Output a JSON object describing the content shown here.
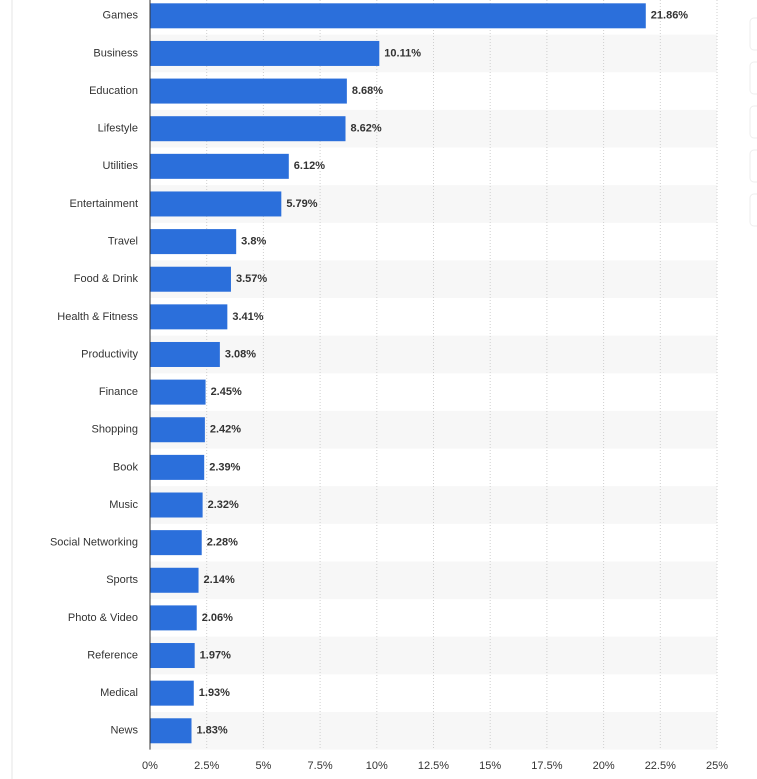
{
  "chart_data": {
    "type": "bar",
    "orientation": "horizontal",
    "color": "#2b6fdb",
    "grid": true,
    "categories": [
      "Games",
      "Business",
      "Education",
      "Lifestyle",
      "Utilities",
      "Entertainment",
      "Travel",
      "Food & Drink",
      "Health & Fitness",
      "Productivity",
      "Finance",
      "Shopping",
      "Book",
      "Music",
      "Social Networking",
      "Sports",
      "Photo & Video",
      "Reference",
      "Medical",
      "News"
    ],
    "values": [
      21.86,
      10.11,
      8.68,
      8.62,
      6.12,
      5.79,
      3.8,
      3.57,
      3.41,
      3.08,
      2.45,
      2.42,
      2.39,
      2.32,
      2.28,
      2.14,
      2.06,
      1.97,
      1.93,
      1.83
    ],
    "value_labels": [
      "21.86%",
      "10.11%",
      "8.68%",
      "8.62%",
      "6.12%",
      "5.79%",
      "3.8%",
      "3.57%",
      "3.41%",
      "3.08%",
      "2.45%",
      "2.42%",
      "2.39%",
      "2.32%",
      "2.28%",
      "2.14%",
      "2.06%",
      "1.97%",
      "1.93%",
      "1.83%"
    ],
    "xlim": [
      0,
      25
    ],
    "xticks": [
      {
        "value": 0,
        "label": "0%"
      },
      {
        "value": 2.5,
        "label": "2.5%"
      },
      {
        "value": 5,
        "label": "5%"
      },
      {
        "value": 7.5,
        "label": "7.5%"
      },
      {
        "value": 10,
        "label": "10%"
      },
      {
        "value": 12.5,
        "label": "12.5%"
      },
      {
        "value": 15,
        "label": "15%"
      },
      {
        "value": 17.5,
        "label": "17.5%"
      },
      {
        "value": 20,
        "label": "20%"
      },
      {
        "value": 22.5,
        "label": "22.5%"
      },
      {
        "value": 25,
        "label": "25%"
      }
    ]
  }
}
